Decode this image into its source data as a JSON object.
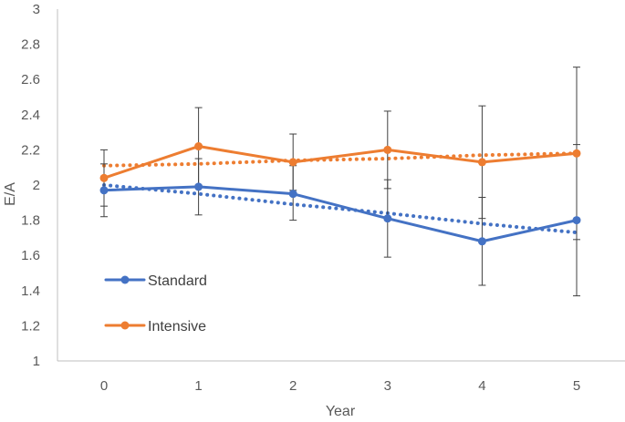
{
  "chart_data": {
    "type": "line",
    "title": "",
    "xlabel": "Year",
    "ylabel": "E/A",
    "x": [
      0,
      1,
      2,
      3,
      4,
      5
    ],
    "x_tick_labels": [
      "0",
      "1",
      "2",
      "3",
      "4",
      "5"
    ],
    "ylim": [
      1,
      3
    ],
    "y_ticks": [
      1,
      1.2,
      1.4,
      1.6,
      1.8,
      2,
      2.2,
      2.4,
      2.6,
      2.8,
      3
    ],
    "y_tick_labels": [
      "1",
      "1.2",
      "1.4",
      "1.6",
      "1.8",
      "2",
      "2.2",
      "2.4",
      "2.6",
      "2.8",
      "3"
    ],
    "grid": false,
    "legend_position": "bottom-left",
    "series": [
      {
        "name": "Standard",
        "color": "#4472C4",
        "values": [
          1.97,
          1.99,
          1.95,
          1.81,
          1.68,
          1.8
        ],
        "error_low": [
          1.82,
          1.83,
          1.8,
          1.59,
          1.43,
          1.37
        ],
        "error_high": [
          2.12,
          2.15,
          2.11,
          2.03,
          1.93,
          2.23
        ],
        "trendline": [
          2.0,
          1.95,
          1.89,
          1.84,
          1.78,
          1.73
        ]
      },
      {
        "name": "Intensive",
        "color": "#ED7D31",
        "values": [
          2.04,
          2.22,
          2.13,
          2.2,
          2.13,
          2.18
        ],
        "error_low": [
          1.88,
          2.0,
          1.97,
          1.98,
          1.81,
          1.69
        ],
        "error_high": [
          2.2,
          2.44,
          2.29,
          2.42,
          2.45,
          2.67
        ],
        "trendline": [
          2.11,
          2.12,
          2.14,
          2.15,
          2.17,
          2.18
        ]
      }
    ]
  }
}
